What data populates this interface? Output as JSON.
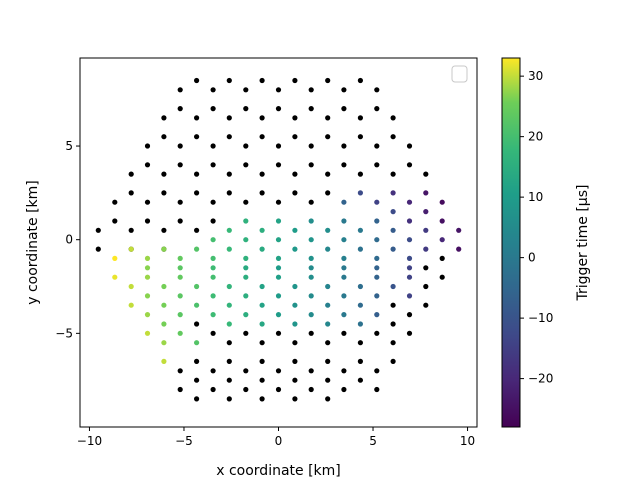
{
  "chart_data": {
    "type": "scatter",
    "xlabel": "x coordinate [km]",
    "ylabel": "y coordinate [km]",
    "xlim": [
      -10.5,
      10.5
    ],
    "ylim": [
      -10,
      9.7
    ],
    "xticks": [
      -10,
      -5,
      0,
      5,
      10
    ],
    "yticks": [
      -5,
      0,
      5
    ],
    "legend": {
      "position": "top-right",
      "entries": []
    },
    "colorbar": {
      "label": "Trigger time [μs]",
      "colormap": "viridis",
      "range": [
        -28,
        33
      ],
      "ticks": [
        -20,
        -10,
        0,
        10,
        20,
        30
      ]
    },
    "untriggered_color": "#000000",
    "series": [
      {
        "role": "untriggered",
        "points": [
          [
            -4.33,
            8.5
          ],
          [
            -2.6,
            8.5
          ],
          [
            -0.87,
            8.5
          ],
          [
            0.87,
            8.5
          ],
          [
            2.6,
            8.5
          ],
          [
            4.33,
            8.5
          ],
          [
            -5.2,
            8.0
          ],
          [
            -3.46,
            8.0
          ],
          [
            -1.73,
            8.0
          ],
          [
            0.0,
            8.0
          ],
          [
            1.73,
            8.0
          ],
          [
            3.46,
            8.0
          ],
          [
            5.2,
            8.0
          ],
          [
            -5.2,
            7.0
          ],
          [
            -3.46,
            7.0
          ],
          [
            -1.73,
            7.0
          ],
          [
            0.0,
            7.0
          ],
          [
            1.73,
            7.0
          ],
          [
            3.46,
            7.0
          ],
          [
            5.2,
            7.0
          ],
          [
            -6.06,
            6.5
          ],
          [
            -4.33,
            6.5
          ],
          [
            -2.6,
            6.5
          ],
          [
            -0.87,
            6.5
          ],
          [
            0.87,
            6.5
          ],
          [
            2.6,
            6.5
          ],
          [
            4.33,
            6.5
          ],
          [
            6.06,
            6.5
          ],
          [
            -6.06,
            5.5
          ],
          [
            -4.33,
            5.5
          ],
          [
            -2.6,
            5.5
          ],
          [
            -0.87,
            5.5
          ],
          [
            0.87,
            5.5
          ],
          [
            2.6,
            5.5
          ],
          [
            4.33,
            5.5
          ],
          [
            6.06,
            5.5
          ],
          [
            -6.93,
            5.0
          ],
          [
            -5.2,
            5.0
          ],
          [
            -3.46,
            5.0
          ],
          [
            -1.73,
            5.0
          ],
          [
            0.0,
            5.0
          ],
          [
            1.73,
            5.0
          ],
          [
            3.46,
            5.0
          ],
          [
            5.2,
            5.0
          ],
          [
            6.93,
            5.0
          ],
          [
            -6.93,
            4.0
          ],
          [
            -5.2,
            4.0
          ],
          [
            -3.46,
            4.0
          ],
          [
            -1.73,
            4.0
          ],
          [
            0.0,
            4.0
          ],
          [
            1.73,
            4.0
          ],
          [
            3.46,
            4.0
          ],
          [
            5.2,
            4.0
          ],
          [
            6.93,
            4.0
          ],
          [
            -7.79,
            3.5
          ],
          [
            -6.06,
            3.5
          ],
          [
            -4.33,
            3.5
          ],
          [
            -2.6,
            3.5
          ],
          [
            -0.87,
            3.5
          ],
          [
            0.87,
            3.5
          ],
          [
            2.6,
            3.5
          ],
          [
            4.33,
            3.5
          ],
          [
            6.06,
            3.5
          ],
          [
            7.79,
            3.5
          ],
          [
            -7.79,
            2.5
          ],
          [
            -6.06,
            2.5
          ],
          [
            -4.33,
            2.5
          ],
          [
            -2.6,
            2.5
          ],
          [
            -0.87,
            2.5
          ],
          [
            0.87,
            2.5
          ],
          [
            2.6,
            2.5
          ],
          [
            -8.66,
            2.0
          ],
          [
            -6.93,
            2.0
          ],
          [
            -5.2,
            2.0
          ],
          [
            -3.46,
            2.0
          ],
          [
            -1.73,
            2.0
          ],
          [
            0.0,
            2.0
          ],
          [
            1.73,
            2.0
          ],
          [
            -8.66,
            1.0
          ],
          [
            -6.93,
            1.0
          ],
          [
            -5.2,
            1.0
          ],
          [
            -3.46,
            1.0
          ],
          [
            -9.53,
            0.5
          ],
          [
            -7.79,
            0.5
          ],
          [
            -6.06,
            0.5
          ],
          [
            -4.33,
            0.5
          ],
          [
            -9.53,
            -0.5
          ],
          [
            -7.79,
            -0.5
          ],
          [
            -6.06,
            -0.5
          ],
          [
            8.66,
            -1.0
          ],
          [
            7.79,
            -1.5
          ],
          [
            8.66,
            -2.0
          ],
          [
            7.79,
            -2.5
          ],
          [
            6.06,
            -3.5
          ],
          [
            7.79,
            -3.5
          ],
          [
            -4.33,
            -4.5
          ],
          [
            6.06,
            -4.5
          ],
          [
            6.93,
            -4.0
          ],
          [
            -3.46,
            -5.0
          ],
          [
            -1.73,
            -5.0
          ],
          [
            0.0,
            -5.0
          ],
          [
            1.73,
            -5.0
          ],
          [
            3.46,
            -5.0
          ],
          [
            5.2,
            -5.0
          ],
          [
            6.93,
            -5.0
          ],
          [
            -2.6,
            -5.5
          ],
          [
            -0.87,
            -5.5
          ],
          [
            0.87,
            -5.5
          ],
          [
            2.6,
            -5.5
          ],
          [
            4.33,
            -5.5
          ],
          [
            6.06,
            -5.5
          ],
          [
            -4.33,
            -6.5
          ],
          [
            -2.6,
            -6.5
          ],
          [
            -0.87,
            -6.5
          ],
          [
            0.87,
            -6.5
          ],
          [
            2.6,
            -6.5
          ],
          [
            4.33,
            -6.5
          ],
          [
            6.06,
            -6.5
          ],
          [
            -5.2,
            -7.0
          ],
          [
            -3.46,
            -7.0
          ],
          [
            -1.73,
            -7.0
          ],
          [
            0.0,
            -7.0
          ],
          [
            1.73,
            -7.0
          ],
          [
            3.46,
            -7.0
          ],
          [
            5.2,
            -7.0
          ],
          [
            -4.33,
            -7.5
          ],
          [
            -2.6,
            -7.5
          ],
          [
            -0.87,
            -7.5
          ],
          [
            0.87,
            -7.5
          ],
          [
            2.6,
            -7.5
          ],
          [
            4.33,
            -7.5
          ],
          [
            -5.2,
            -8.0
          ],
          [
            -3.46,
            -8.0
          ],
          [
            -1.73,
            -8.0
          ],
          [
            0.0,
            -8.0
          ],
          [
            1.73,
            -8.0
          ],
          [
            3.46,
            -8.0
          ],
          [
            5.2,
            -8.0
          ],
          [
            -4.33,
            -8.5
          ],
          [
            -2.6,
            -8.5
          ],
          [
            -0.87,
            -8.5
          ],
          [
            0.87,
            -8.5
          ],
          [
            2.6,
            -8.5
          ]
        ]
      },
      {
        "role": "triggered",
        "points": [
          [
            3.46,
            2.0,
            -6
          ],
          [
            4.33,
            2.5,
            -12
          ],
          [
            5.2,
            2.0,
            -14
          ],
          [
            6.06,
            2.5,
            -18
          ],
          [
            6.93,
            2.0,
            -20
          ],
          [
            7.79,
            2.5,
            -24
          ],
          [
            8.66,
            2.0,
            -26
          ],
          [
            -1.73,
            1.0,
            16
          ],
          [
            0.0,
            1.0,
            12
          ],
          [
            1.73,
            1.0,
            6
          ],
          [
            3.46,
            1.0,
            0
          ],
          [
            5.2,
            1.0,
            -6
          ],
          [
            6.06,
            1.5,
            -12
          ],
          [
            6.93,
            1.0,
            -18
          ],
          [
            7.79,
            1.5,
            -22
          ],
          [
            8.66,
            1.0,
            -25
          ],
          [
            -2.6,
            0.5,
            18
          ],
          [
            -0.87,
            0.5,
            15
          ],
          [
            0.87,
            0.5,
            10
          ],
          [
            2.6,
            0.5,
            6
          ],
          [
            4.33,
            0.5,
            0
          ],
          [
            6.06,
            0.5,
            -8
          ],
          [
            7.79,
            0.5,
            -16
          ],
          [
            9.53,
            0.5,
            -24
          ],
          [
            -3.46,
            0.0,
            20
          ],
          [
            -1.73,
            0.0,
            16
          ],
          [
            0.0,
            0.0,
            12
          ],
          [
            1.73,
            0.0,
            8
          ],
          [
            3.46,
            0.0,
            2
          ],
          [
            5.2,
            0.0,
            -4
          ],
          [
            6.93,
            0.0,
            -12
          ],
          [
            8.66,
            0.0,
            -20
          ],
          [
            -7.79,
            -0.5,
            30
          ],
          [
            -6.06,
            -0.5,
            27
          ],
          [
            -4.33,
            -0.5,
            22
          ],
          [
            -2.6,
            -0.5,
            18
          ],
          [
            -0.87,
            -0.5,
            14
          ],
          [
            0.87,
            -0.5,
            9
          ],
          [
            2.6,
            -0.5,
            4
          ],
          [
            4.33,
            -0.5,
            -2
          ],
          [
            6.06,
            -0.5,
            -8
          ],
          [
            7.79,
            -0.5,
            -16
          ],
          [
            9.53,
            -0.5,
            -25
          ],
          [
            -8.66,
            -1.0,
            33
          ],
          [
            -6.93,
            -1.0,
            28
          ],
          [
            -5.2,
            -1.0,
            24
          ],
          [
            -3.46,
            -1.0,
            20
          ],
          [
            -1.73,
            -1.0,
            16
          ],
          [
            0.0,
            -1.0,
            12
          ],
          [
            1.73,
            -1.0,
            7
          ],
          [
            3.46,
            -1.0,
            2
          ],
          [
            5.2,
            -1.0,
            -4
          ],
          [
            6.93,
            -1.0,
            -12
          ],
          [
            -6.93,
            -1.5,
            27
          ],
          [
            -5.2,
            -1.5,
            23
          ],
          [
            -3.46,
            -1.5,
            19
          ],
          [
            -1.73,
            -1.5,
            14
          ],
          [
            0.0,
            -1.5,
            10
          ],
          [
            1.73,
            -1.5,
            5
          ],
          [
            3.46,
            -1.5,
            0
          ],
          [
            5.2,
            -1.5,
            -6
          ],
          [
            6.93,
            -1.5,
            -14
          ],
          [
            -8.66,
            -2.0,
            32
          ],
          [
            -6.93,
            -2.0,
            28
          ],
          [
            -5.2,
            -2.0,
            24
          ],
          [
            -3.46,
            -2.0,
            20
          ],
          [
            -1.73,
            -2.0,
            15
          ],
          [
            0.0,
            -2.0,
            11
          ],
          [
            1.73,
            -2.0,
            6
          ],
          [
            3.46,
            -2.0,
            0
          ],
          [
            5.2,
            -2.0,
            -6
          ],
          [
            6.93,
            -2.0,
            -14
          ],
          [
            -7.79,
            -2.5,
            30
          ],
          [
            -6.06,
            -2.5,
            26
          ],
          [
            -4.33,
            -2.5,
            22
          ],
          [
            -2.6,
            -2.5,
            17
          ],
          [
            -0.87,
            -2.5,
            12
          ],
          [
            0.87,
            -2.5,
            8
          ],
          [
            2.6,
            -2.5,
            3
          ],
          [
            4.33,
            -2.5,
            -3
          ],
          [
            6.06,
            -2.5,
            -10
          ],
          [
            -6.93,
            -3.0,
            27
          ],
          [
            -5.2,
            -3.0,
            23
          ],
          [
            -3.46,
            -3.0,
            19
          ],
          [
            -1.73,
            -3.0,
            15
          ],
          [
            0.0,
            -3.0,
            10
          ],
          [
            1.73,
            -3.0,
            5
          ],
          [
            3.46,
            -3.0,
            0
          ],
          [
            5.2,
            -3.0,
            -6
          ],
          [
            6.93,
            -3.0,
            -14
          ],
          [
            -7.79,
            -3.5,
            30
          ],
          [
            -6.06,
            -3.5,
            26
          ],
          [
            -4.33,
            -3.5,
            21
          ],
          [
            -2.6,
            -3.5,
            17
          ],
          [
            -0.87,
            -3.5,
            12
          ],
          [
            0.87,
            -3.5,
            7
          ],
          [
            2.6,
            -3.5,
            2
          ],
          [
            4.33,
            -3.5,
            -4
          ],
          [
            -6.93,
            -4.0,
            28
          ],
          [
            -5.2,
            -4.0,
            23
          ],
          [
            -3.46,
            -4.0,
            19
          ],
          [
            -1.73,
            -4.0,
            15
          ],
          [
            0.0,
            -4.0,
            10
          ],
          [
            1.73,
            -4.0,
            5
          ],
          [
            3.46,
            -4.0,
            0
          ],
          [
            5.2,
            -4.0,
            -7
          ],
          [
            -6.06,
            -4.5,
            26
          ],
          [
            -2.6,
            -4.5,
            18
          ],
          [
            -0.87,
            -4.5,
            13
          ],
          [
            0.87,
            -4.5,
            8
          ],
          [
            2.6,
            -4.5,
            4
          ],
          [
            4.33,
            -4.5,
            -2
          ],
          [
            -6.93,
            -5.0,
            30
          ],
          [
            -5.2,
            -5.0,
            24
          ],
          [
            -6.06,
            -5.5,
            28
          ],
          [
            -4.33,
            -5.5,
            22
          ],
          [
            -6.06,
            -6.5,
            30
          ]
        ]
      }
    ]
  }
}
